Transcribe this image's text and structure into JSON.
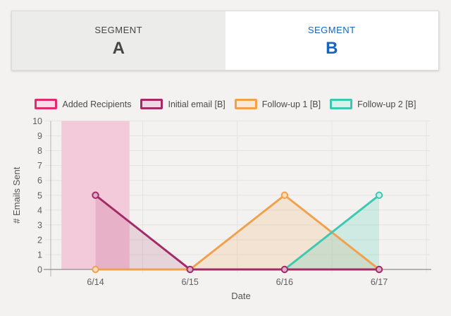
{
  "colors": {
    "accent_blue": "#1565c0",
    "page_bg": "#f3f2f0",
    "grid_line": "#e4e3e1",
    "axis_line": "#8e8d8c",
    "tick_text": "#5f5f5f"
  },
  "tabs": [
    {
      "label": "SEGMENT",
      "letter": "A",
      "active": false
    },
    {
      "label": "SEGMENT",
      "letter": "B",
      "active": true
    }
  ],
  "chart_data": {
    "type": "line",
    "x": [
      "6/14",
      "6/15",
      "6/16",
      "6/17"
    ],
    "xlabel": "Date",
    "ylabel": "# Emails Sent",
    "ylim": [
      0,
      10
    ],
    "ytick_step": 1,
    "grid": true,
    "legend_position": "top",
    "series": [
      {
        "name": "Added Recipients",
        "type": "band",
        "x_center": "6/14",
        "band_halfwidth_days": 0.36,
        "span_values": [
          0,
          10
        ],
        "color": "#e5296d",
        "fill": "#f3cada",
        "legend_fill": "#f8dce7"
      },
      {
        "name": "Initial email [B]",
        "type": "line",
        "values": [
          5,
          0,
          0,
          0
        ],
        "markers_at": [
          "6/14",
          "6/15",
          "6/16",
          "6/17"
        ],
        "color": "#a52964",
        "fill": "rgba(165,41,100,0.15)",
        "marker_fill": "#dcaec9",
        "legend_fill": "#eed7e4"
      },
      {
        "name": "Follow-up 1 [B]",
        "type": "line",
        "values": [
          0,
          0,
          5,
          0
        ],
        "markers_at": [
          "6/14",
          "6/16"
        ],
        "color": "#f1a14b",
        "fill": "rgba(241,161,75,0.18)",
        "marker_fill": "#f9ddbb",
        "legend_fill": "#f9e8d8"
      },
      {
        "name": "Follow-up 2 [B]",
        "type": "line",
        "values": [
          null,
          null,
          0,
          5
        ],
        "markers_at": [
          "6/17"
        ],
        "color": "#3fc8b1",
        "fill": "rgba(63,200,177,0.20)",
        "marker_fill": "#cdeee6",
        "legend_fill": "#d8f1ea"
      }
    ]
  }
}
